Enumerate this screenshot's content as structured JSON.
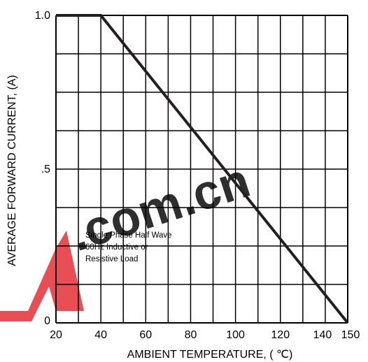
{
  "chart_data": {
    "type": "line",
    "title": "",
    "xlabel": "AMBIENT TEMPERATURE, ( ℃)",
    "ylabel": "AVERAGE FORWARD CURRENT, (A)",
    "xlim": [
      20,
      150
    ],
    "ylim": [
      0,
      1.0
    ],
    "x_ticks": [
      "20",
      "40",
      "60",
      "80",
      "100",
      "120",
      "140",
      "150"
    ],
    "x_tick_values": [
      20,
      40,
      60,
      80,
      100,
      120,
      140,
      150
    ],
    "y_ticks": [
      "0",
      ".5",
      "1.0"
    ],
    "y_tick_values": [
      0,
      0.5,
      1.0
    ],
    "grid": true,
    "series": [
      {
        "x": [
          20,
          40,
          150
        ],
        "y": [
          1.0,
          1.0,
          0
        ]
      }
    ],
    "annotation_lines": [
      "Single Phase Half Wave",
      "60Hz Inductive or",
      "Resistive Load"
    ],
    "colors": {
      "line": "#231f20",
      "grid": "#000000"
    }
  },
  "watermark": {
    "text": ".com.cn",
    "logo_letter": "N",
    "color": "#e0191f"
  }
}
